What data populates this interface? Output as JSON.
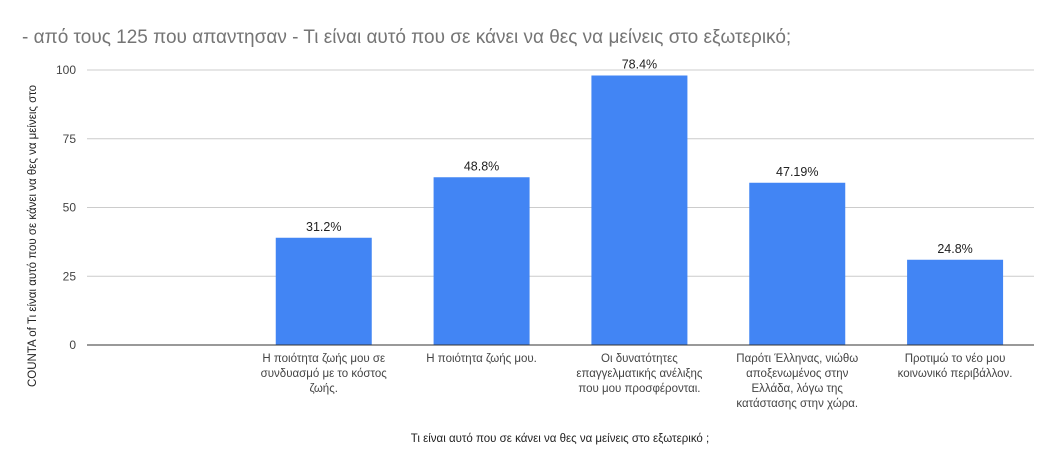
{
  "chart_data": {
    "type": "bar",
    "title": "- από τους 125 που απαντησαν  - Τι είναι αυτό που σε κάνει να θες να μείνεις στο εξωτερικό;",
    "xlabel": "Τι είναι αυτό που σε κάνει να θες να μείνεις στο εξωτερικό ;",
    "ylabel": "COUNTA of Τι είναι αυτό που σε κάνει να θες να μείνεις στο",
    "ylim": [
      0,
      100
    ],
    "yticks": [
      "0",
      "25",
      "50",
      "75",
      "100"
    ],
    "grid": true,
    "legend": "none",
    "bar_color": "#4285f4",
    "categories": [
      "",
      "Η ποιότητα ζωής μου σε συνδυασμό με το κόστος ζωής.",
      "Η ποιότητα ζωής μου.",
      "Οι δυνατότητες επαγγελματικής ανέλιξης που μου προσφέρονται.",
      "Παρότι Έλληνας, νιώθω αποξενωμένος στην Ελλάδα, λόγω της κατάστασης στην χώρα.",
      "Προτιμώ το νέο μου κοινωνικό περιβάλλον."
    ],
    "category_lines": [
      [],
      [
        "Η ποιότητα ζωής μου σε",
        "συνδυασμό με το κόστος",
        "ζωής."
      ],
      [
        "Η ποιότητα ζωής μου."
      ],
      [
        "Οι δυνατότητες",
        "επαγγελματικής ανέλιξης",
        "που μου προσφέρονται."
      ],
      [
        "Παρότι Έλληνας, νιώθω",
        "αποξενωμένος στην",
        "Ελλάδα, λόγω της",
        "κατάστασης στην χώρα."
      ],
      [
        "Προτιμώ το νέο μου",
        "κοινωνικό περιβάλλον."
      ]
    ],
    "values": [
      0,
      39,
      61,
      98,
      59,
      31
    ],
    "data_labels": [
      "",
      "31.2%",
      "48.8%",
      "78.4%",
      "47.19%",
      "24.8%"
    ]
  }
}
